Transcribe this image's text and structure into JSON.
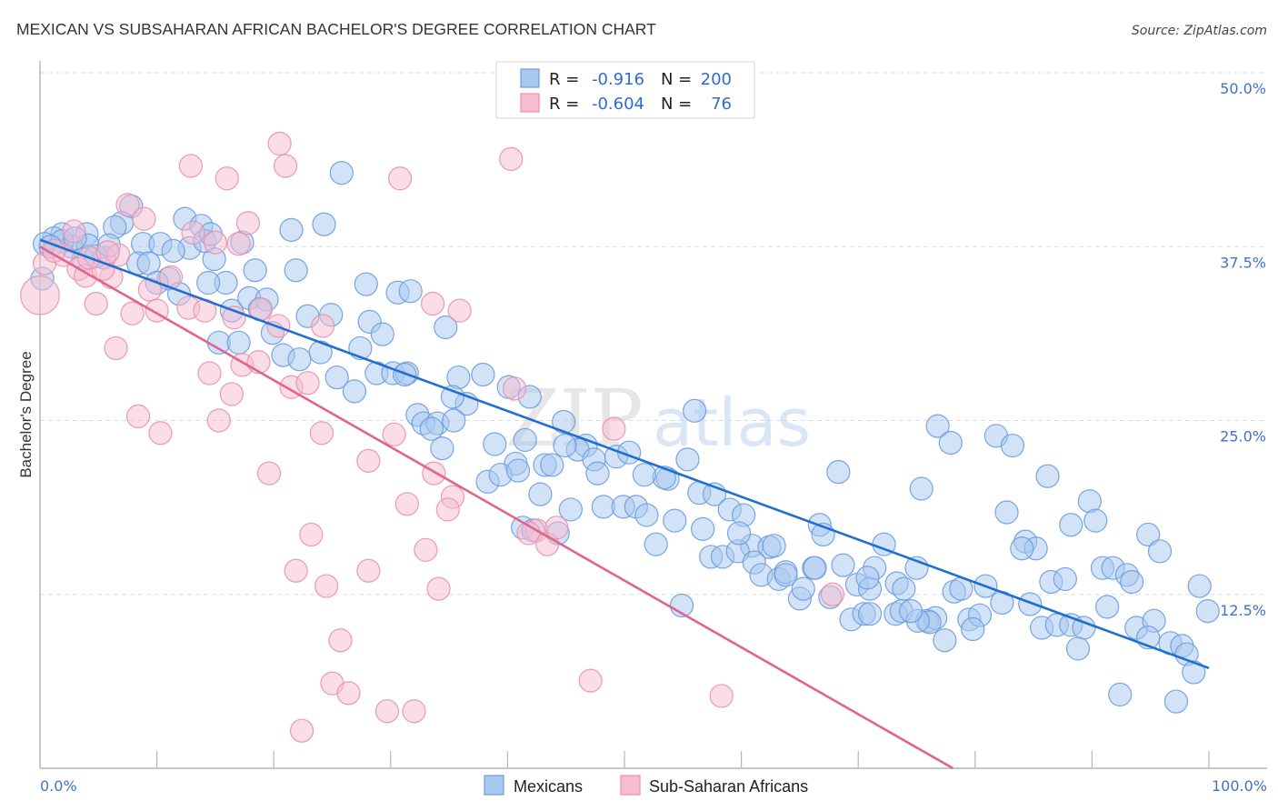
{
  "header": {
    "title": "MEXICAN VS SUBSAHARAN AFRICAN BACHELOR'S DEGREE CORRELATION CHART",
    "source": "Source: ZipAtlas.com"
  },
  "legend": {
    "rows": [
      {
        "r_label": "R =",
        "r_value": "-0.916",
        "n_label": "N =",
        "n_value": "200",
        "color": "#a8c8f0",
        "stroke": "#6a9be0"
      },
      {
        "r_label": "R =",
        "r_value": "-0.604",
        "n_label": "N =",
        "n_value": "76",
        "color": "#f8bcd0",
        "stroke": "#e890ad"
      }
    ]
  },
  "bottom_legend": [
    {
      "label": "Mexicans",
      "color": "#a8c8f0",
      "stroke": "#6a9be0"
    },
    {
      "label": "Sub-Saharan Africans",
      "color": "#f8bcd0",
      "stroke": "#e890ad"
    }
  ],
  "watermark": {
    "part1": "ZIP",
    "part2": "atlas"
  },
  "chart_data": {
    "type": "scatter",
    "title": "MEXICAN VS SUBSAHARAN AFRICAN BACHELOR'S DEGREE CORRELATION CHART",
    "xlabel": "",
    "ylabel": "Bachelor's Degree",
    "xlim": [
      0,
      100
    ],
    "ylim": [
      0,
      50
    ],
    "x_tick_labels": [
      {
        "value": 0,
        "label": "0.0%"
      },
      {
        "value": 100,
        "label": "100.0%"
      }
    ],
    "x_minor_ticks": [
      10,
      20,
      30,
      40,
      50,
      60,
      70,
      80,
      90,
      100
    ],
    "yticks": [
      {
        "value": 50,
        "label": "50.0%"
      },
      {
        "value": 37.5,
        "label": "37.5%"
      },
      {
        "value": 25,
        "label": "25.0%"
      },
      {
        "value": 12.5,
        "label": "12.5%"
      }
    ],
    "grid": true,
    "legend_position": "top-center",
    "series": [
      {
        "name": "Mexicans",
        "color": "#a8c8f0",
        "stroke": "#6a9be0",
        "line_color": "#1f6fd1",
        "R": -0.916,
        "N": 200,
        "trend": {
          "x": [
            0,
            100
          ],
          "y": [
            38.0,
            7.2
          ]
        },
        "points": [
          [
            25.8,
            42.8
          ],
          [
            24.3,
            39.1
          ],
          [
            21.5,
            38.7
          ],
          [
            12.4,
            39.5
          ],
          [
            13.8,
            39.0
          ],
          [
            7.8,
            40.4
          ],
          [
            7.0,
            39.2
          ],
          [
            6.4,
            38.9
          ],
          [
            4.0,
            38.4
          ],
          [
            1.9,
            38.4
          ],
          [
            1.2,
            38.1
          ],
          [
            0.4,
            37.7
          ],
          [
            2.7,
            37.5
          ],
          [
            4.1,
            37.6
          ],
          [
            3.7,
            36.6
          ],
          [
            5.5,
            36.7
          ],
          [
            8.8,
            37.7
          ],
          [
            10.3,
            37.7
          ],
          [
            12.8,
            37.4
          ],
          [
            17.3,
            37.8
          ],
          [
            8.4,
            36.3
          ],
          [
            9.3,
            36.3
          ],
          [
            11.4,
            37.2
          ],
          [
            11.0,
            35.2
          ],
          [
            10.0,
            34.9
          ],
          [
            11.9,
            34.1
          ],
          [
            14.9,
            36.6
          ],
          [
            15.9,
            34.9
          ],
          [
            14.4,
            34.9
          ],
          [
            18.4,
            35.8
          ],
          [
            21.9,
            35.8
          ],
          [
            0.2,
            35.2
          ],
          [
            16.4,
            32.9
          ],
          [
            17.9,
            33.8
          ],
          [
            19.4,
            33.7
          ],
          [
            18.8,
            33.0
          ],
          [
            15.3,
            30.6
          ],
          [
            17.0,
            30.6
          ],
          [
            19.9,
            31.3
          ],
          [
            20.8,
            29.7
          ],
          [
            22.9,
            32.5
          ],
          [
            24.9,
            32.6
          ],
          [
            27.9,
            34.8
          ],
          [
            30.6,
            34.2
          ],
          [
            31.7,
            34.3
          ],
          [
            28.2,
            32.1
          ],
          [
            29.3,
            31.2
          ],
          [
            27.4,
            30.2
          ],
          [
            24.0,
            29.9
          ],
          [
            22.2,
            29.4
          ],
          [
            25.4,
            28.1
          ],
          [
            26.9,
            27.1
          ],
          [
            28.8,
            28.4
          ],
          [
            30.2,
            28.4
          ],
          [
            31.4,
            28.4
          ],
          [
            34.7,
            31.7
          ],
          [
            35.8,
            28.1
          ],
          [
            37.9,
            28.3
          ],
          [
            36.5,
            26.2
          ],
          [
            40.1,
            27.4
          ],
          [
            32.3,
            25.4
          ],
          [
            32.8,
            24.8
          ],
          [
            34.0,
            24.8
          ],
          [
            33.5,
            24.4
          ],
          [
            35.4,
            25.0
          ],
          [
            34.4,
            23.0
          ],
          [
            38.9,
            23.3
          ],
          [
            40.7,
            21.9
          ],
          [
            41.5,
            23.6
          ],
          [
            38.3,
            20.6
          ],
          [
            39.4,
            21.1
          ],
          [
            40.9,
            21.4
          ],
          [
            42.8,
            19.7
          ],
          [
            43.2,
            21.8
          ],
          [
            43.8,
            21.8
          ],
          [
            44.8,
            24.9
          ],
          [
            46.7,
            23.2
          ],
          [
            46.0,
            22.9
          ],
          [
            47.4,
            22.2
          ],
          [
            47.7,
            21.2
          ],
          [
            49.3,
            22.4
          ],
          [
            50.4,
            22.7
          ],
          [
            41.3,
            17.3
          ],
          [
            42.2,
            17.1
          ],
          [
            44.3,
            16.9
          ],
          [
            45.4,
            18.6
          ],
          [
            48.2,
            18.8
          ],
          [
            49.9,
            18.8
          ],
          [
            51.0,
            18.8
          ],
          [
            51.9,
            18.2
          ],
          [
            54.3,
            17.8
          ],
          [
            52.7,
            16.1
          ],
          [
            53.7,
            20.8
          ],
          [
            55.4,
            22.2
          ],
          [
            56.0,
            25.7
          ],
          [
            53.4,
            20.9
          ],
          [
            56.4,
            19.8
          ],
          [
            57.7,
            19.7
          ],
          [
            56.7,
            17.2
          ],
          [
            59.0,
            18.6
          ],
          [
            60.2,
            18.2
          ],
          [
            60.9,
            16.0
          ],
          [
            62.4,
            15.9
          ],
          [
            62.8,
            16.0
          ],
          [
            57.4,
            15.2
          ],
          [
            58.4,
            15.2
          ],
          [
            59.7,
            15.6
          ],
          [
            61.1,
            14.8
          ],
          [
            61.7,
            13.9
          ],
          [
            63.2,
            13.6
          ],
          [
            63.8,
            14.1
          ],
          [
            65.0,
            12.2
          ],
          [
            65.3,
            12.9
          ],
          [
            66.2,
            14.4
          ],
          [
            66.7,
            17.5
          ],
          [
            67.0,
            16.8
          ],
          [
            54.9,
            11.7
          ],
          [
            67.6,
            12.3
          ],
          [
            68.7,
            14.6
          ],
          [
            69.9,
            13.2
          ],
          [
            71.0,
            12.9
          ],
          [
            71.4,
            14.4
          ],
          [
            72.2,
            16.1
          ],
          [
            73.3,
            13.3
          ],
          [
            73.9,
            12.9
          ],
          [
            75.0,
            14.4
          ],
          [
            69.4,
            10.7
          ],
          [
            70.5,
            11.1
          ],
          [
            71.0,
            11.1
          ],
          [
            73.2,
            11.1
          ],
          [
            73.7,
            11.3
          ],
          [
            75.9,
            10.6
          ],
          [
            76.6,
            10.8
          ],
          [
            77.4,
            9.2
          ],
          [
            79.5,
            10.7
          ],
          [
            80.4,
            11.0
          ],
          [
            78.2,
            12.7
          ],
          [
            78.8,
            12.9
          ],
          [
            80.9,
            13.1
          ],
          [
            79.8,
            10.0
          ],
          [
            68.3,
            21.3
          ],
          [
            75.4,
            20.1
          ],
          [
            76.8,
            24.6
          ],
          [
            77.9,
            23.4
          ],
          [
            81.8,
            23.9
          ],
          [
            83.2,
            23.2
          ],
          [
            86.2,
            21.0
          ],
          [
            82.7,
            18.4
          ],
          [
            84.3,
            16.3
          ],
          [
            85.2,
            15.8
          ],
          [
            84.0,
            15.8
          ],
          [
            86.5,
            13.4
          ],
          [
            87.7,
            13.6
          ],
          [
            88.2,
            17.5
          ],
          [
            89.8,
            19.2
          ],
          [
            90.3,
            17.8
          ],
          [
            90.9,
            14.4
          ],
          [
            91.8,
            14.4
          ],
          [
            93.0,
            13.9
          ],
          [
            93.4,
            13.4
          ],
          [
            91.3,
            11.6
          ],
          [
            84.7,
            11.8
          ],
          [
            85.7,
            10.1
          ],
          [
            87.0,
            10.3
          ],
          [
            88.2,
            10.3
          ],
          [
            89.3,
            10.1
          ],
          [
            88.8,
            8.6
          ],
          [
            93.8,
            10.1
          ],
          [
            95.3,
            10.6
          ],
          [
            94.8,
            9.4
          ],
          [
            96.7,
            9.0
          ],
          [
            97.7,
            8.8
          ],
          [
            98.1,
            8.2
          ],
          [
            98.7,
            6.9
          ],
          [
            92.4,
            5.3
          ],
          [
            97.2,
            4.8
          ],
          [
            94.8,
            16.8
          ],
          [
            95.8,
            15.6
          ],
          [
            99.2,
            13.1
          ],
          [
            99.9,
            11.3
          ],
          [
            82.3,
            11.9
          ],
          [
            76.1,
            10.5
          ],
          [
            70.8,
            13.7
          ],
          [
            66.3,
            14.4
          ],
          [
            63.8,
            13.9
          ],
          [
            75.1,
            10.6
          ],
          [
            59.8,
            16.9
          ],
          [
            51.7,
            21.1
          ],
          [
            35.3,
            26.7
          ],
          [
            44.9,
            23.2
          ],
          [
            1.9,
            37.9
          ],
          [
            3.0,
            38.1
          ],
          [
            0.9,
            37.5
          ],
          [
            4.8,
            36.8
          ],
          [
            5.9,
            37.6
          ],
          [
            14.1,
            37.9
          ],
          [
            14.6,
            38.4
          ],
          [
            31.2,
            28.3
          ],
          [
            41.9,
            26.7
          ],
          [
            74.5,
            11.3
          ]
        ]
      },
      {
        "name": "Sub-Saharan Africans",
        "color": "#f8bcd0",
        "stroke": "#e890ad",
        "line_color": "#e0648e",
        "R": -0.604,
        "N": 76,
        "trend": {
          "x": [
            0,
            78.1
          ],
          "y": [
            37.5,
            0
          ]
        },
        "points": [
          [
            20.5,
            44.9
          ],
          [
            12.9,
            43.3
          ],
          [
            21.0,
            43.3
          ],
          [
            16.0,
            42.4
          ],
          [
            30.8,
            42.4
          ],
          [
            40.3,
            43.8
          ],
          [
            7.5,
            40.5
          ],
          [
            8.9,
            39.5
          ],
          [
            17.8,
            39.2
          ],
          [
            15.0,
            37.8
          ],
          [
            17.0,
            37.7
          ],
          [
            13.1,
            38.5
          ],
          [
            2.9,
            38.6
          ],
          [
            0.4,
            36.3
          ],
          [
            2.0,
            36.9
          ],
          [
            3.3,
            35.9
          ],
          [
            3.9,
            35.4
          ],
          [
            6.1,
            35.3
          ],
          [
            5.4,
            35.9
          ],
          [
            0.0,
            34.0,
            1.7
          ],
          [
            4.8,
            33.4
          ],
          [
            7.9,
            32.7
          ],
          [
            9.4,
            34.4
          ],
          [
            11.2,
            35.3
          ],
          [
            12.7,
            33.1
          ],
          [
            14.1,
            32.9
          ],
          [
            6.5,
            30.2
          ],
          [
            10.0,
            32.9
          ],
          [
            16.6,
            32.4
          ],
          [
            18.9,
            33.0
          ],
          [
            20.4,
            31.8
          ],
          [
            17.3,
            29.0
          ],
          [
            14.5,
            28.4
          ],
          [
            18.7,
            29.2
          ],
          [
            16.4,
            26.9
          ],
          [
            24.2,
            31.8
          ],
          [
            21.5,
            27.4
          ],
          [
            22.9,
            27.7
          ],
          [
            33.6,
            33.4
          ],
          [
            35.9,
            32.9
          ],
          [
            8.4,
            25.3
          ],
          [
            10.3,
            24.1
          ],
          [
            15.3,
            25.0
          ],
          [
            24.1,
            24.1
          ],
          [
            30.3,
            24.0
          ],
          [
            28.1,
            22.1
          ],
          [
            19.6,
            21.2
          ],
          [
            33.7,
            21.2
          ],
          [
            31.4,
            19.0
          ],
          [
            35.3,
            19.5
          ],
          [
            34.9,
            18.6
          ],
          [
            40.6,
            27.3
          ],
          [
            49.1,
            24.4
          ],
          [
            42.5,
            17.1
          ],
          [
            41.8,
            16.9
          ],
          [
            43.4,
            16.1
          ],
          [
            23.2,
            16.8
          ],
          [
            33.0,
            15.7
          ],
          [
            21.9,
            14.2
          ],
          [
            28.1,
            14.2
          ],
          [
            24.5,
            13.1
          ],
          [
            34.1,
            12.9
          ],
          [
            25.7,
            9.2
          ],
          [
            25.0,
            6.1
          ],
          [
            26.4,
            5.4
          ],
          [
            29.7,
            4.1
          ],
          [
            32.0,
            4.1
          ],
          [
            22.4,
            2.7
          ],
          [
            47.1,
            6.3
          ],
          [
            58.3,
            5.2
          ],
          [
            67.8,
            12.5
          ],
          [
            44.2,
            17.3
          ],
          [
            1.2,
            37.2
          ],
          [
            4.2,
            36.7
          ],
          [
            6.7,
            36.9
          ],
          [
            5.8,
            37.1
          ]
        ]
      }
    ]
  }
}
